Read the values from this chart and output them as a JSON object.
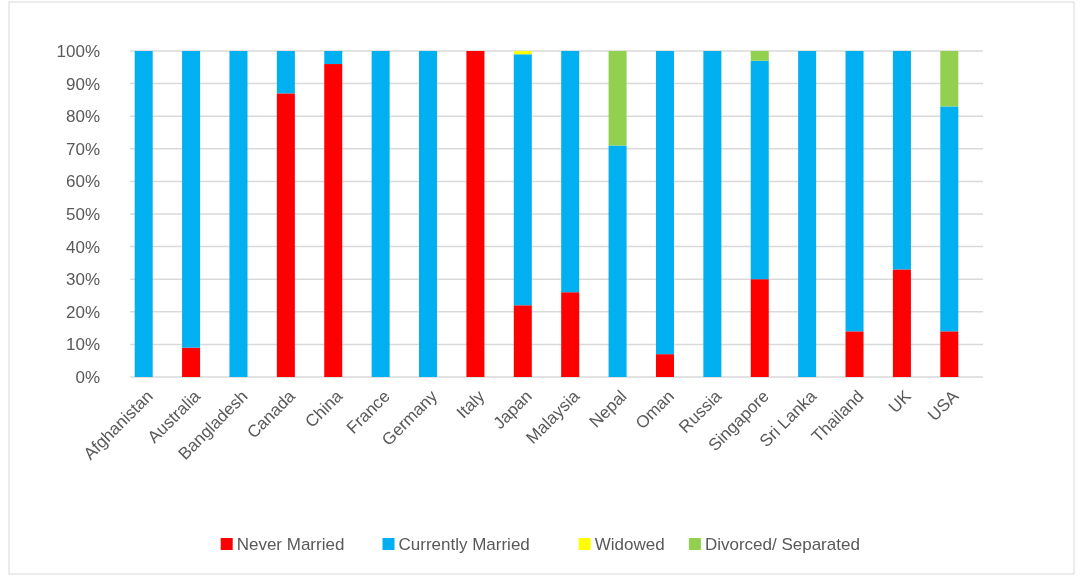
{
  "chart_data": {
    "type": "bar",
    "stacked": true,
    "categories": [
      "Afghanistan",
      "Australia",
      "Bangladesh",
      "Canada",
      "China",
      "France",
      "Germany",
      "Italy",
      "Japan",
      "Malaysia",
      "Nepal",
      "Oman",
      "Russia",
      "Singapore",
      "Sri Lanka",
      "Thailand",
      "UK",
      "USA"
    ],
    "series": [
      {
        "name": "Never Married",
        "color": "#ff0000",
        "values": [
          0,
          9,
          0,
          87,
          96,
          0,
          0,
          100,
          22,
          26,
          0,
          7,
          0,
          30,
          0,
          14,
          33,
          14
        ]
      },
      {
        "name": "Currently Married",
        "color": "#00b0f0",
        "values": [
          100,
          91,
          100,
          13,
          4,
          100,
          100,
          0,
          77,
          74,
          71,
          93,
          100,
          67,
          100,
          86,
          67,
          69
        ]
      },
      {
        "name": "Widowed",
        "color": "#ffff00",
        "values": [
          0,
          0,
          0,
          0,
          0,
          0,
          0,
          0,
          1,
          0,
          0,
          0,
          0,
          0,
          0,
          0,
          0,
          0
        ]
      },
      {
        "name": "Divorced/ Separated",
        "color": "#92d050",
        "values": [
          0,
          0,
          0,
          0,
          0,
          0,
          0,
          0,
          0,
          0,
          29,
          0,
          0,
          3,
          0,
          0,
          0,
          17
        ]
      }
    ],
    "ylim": [
      0,
      100
    ],
    "yticks": [
      {
        "value": 0,
        "label": "0%"
      },
      {
        "value": 10,
        "label": "10%"
      },
      {
        "value": 20,
        "label": "20%"
      },
      {
        "value": 30,
        "label": "30%"
      },
      {
        "value": 40,
        "label": "40%"
      },
      {
        "value": 50,
        "label": "50%"
      },
      {
        "value": 60,
        "label": "60%"
      },
      {
        "value": 70,
        "label": "70%"
      },
      {
        "value": 80,
        "label": "80%"
      },
      {
        "value": 90,
        "label": "90%"
      },
      {
        "value": 100,
        "label": "100%"
      }
    ],
    "grid": "y",
    "legend": "bottom"
  }
}
